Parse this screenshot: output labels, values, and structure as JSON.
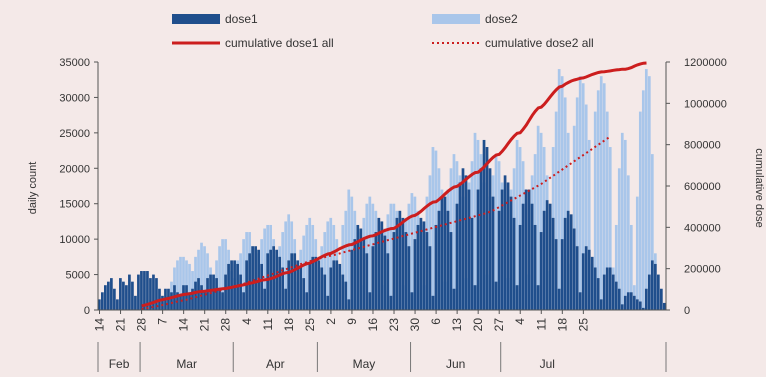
{
  "colors": {
    "background": "#f4e9e8",
    "dose1": "#1f4e8c",
    "dose2": "#a9c6ea",
    "cumulative_dose1": "#cc1e1e",
    "cumulative_dose2": "#cc1e1e",
    "axis_text": "#333333"
  },
  "chart_data": {
    "type": "bar",
    "title": "",
    "ylabel": "daily count",
    "y2label": "cumulative dose",
    "ylim": [
      0,
      35000
    ],
    "y2lim": [
      0,
      1200000
    ],
    "yticks": [
      "0",
      "5000",
      "10000",
      "15000",
      "20000",
      "25000",
      "30000",
      "35000"
    ],
    "y2ticks": [
      "0",
      "200000",
      "400000",
      "600000",
      "800000",
      "1000000",
      "1200000"
    ],
    "x_day_labels": [
      "14",
      "21",
      "28",
      "7",
      "14",
      "21",
      "28",
      "4",
      "11",
      "18",
      "25",
      "2",
      "9",
      "16",
      "23",
      "30",
      "6",
      "13",
      "20",
      "27",
      "4",
      "11",
      "18",
      "25"
    ],
    "months": [
      "Feb",
      "Mar",
      "Apr",
      "May",
      "Jun",
      "Jul"
    ],
    "legend": {
      "dose1": "dose1",
      "dose2": "dose2",
      "cum1": "cumulative dose1 all",
      "cum2": "cumulative dose2 all"
    },
    "legend_position": "top",
    "start_date": "2021-02-14",
    "series": [
      {
        "name": "dose1",
        "type": "bar",
        "values": [
          1500,
          2500,
          3500,
          4000,
          4500,
          3000,
          1500,
          4500,
          4000,
          3500,
          5000,
          4000,
          2000,
          5000,
          5500,
          5500,
          5500,
          4500,
          5000,
          4500,
          3000,
          2000,
          3000,
          3000,
          2500,
          3500,
          2500,
          2000,
          3500,
          3500,
          2500,
          3000,
          4000,
          4500,
          3500,
          2500,
          4500,
          5000,
          5000,
          4500,
          3000,
          2500,
          5000,
          6500,
          7000,
          7000,
          6500,
          5000,
          2500,
          7000,
          8000,
          9000,
          9000,
          8500,
          6500,
          3000,
          8000,
          8500,
          9000,
          8500,
          7500,
          6000,
          3000,
          7000,
          8000,
          8000,
          7000,
          6000,
          4500,
          2500,
          6500,
          7500,
          7500,
          7000,
          6000,
          5000,
          2000,
          6000,
          7000,
          7000,
          6500,
          5000,
          4000,
          1500,
          8500,
          10000,
          12000,
          11500,
          10000,
          8000,
          2500,
          9000,
          11000,
          13000,
          12500,
          10500,
          8000,
          2000,
          11000,
          13000,
          14000,
          13000,
          11000,
          9000,
          2500,
          10000,
          12000,
          13000,
          12500,
          11000,
          9000,
          2000,
          12000,
          14000,
          16000,
          16000,
          14000,
          11000,
          3000,
          15000,
          18000,
          20000,
          19000,
          17000,
          13000,
          3500,
          17000,
          20000,
          24000,
          23000,
          20000,
          16000,
          4000,
          14000,
          17000,
          19000,
          18000,
          16000,
          13000,
          3500,
          12000,
          15000,
          17000,
          17000,
          15000,
          12000,
          3500,
          11000,
          14000,
          15500,
          15000,
          13000,
          10000,
          3000,
          10000,
          13000,
          14000,
          13500,
          11500,
          9000,
          2500,
          8000,
          9000,
          8500,
          7500,
          6000,
          4500,
          1500,
          5000,
          6000,
          6000,
          5000,
          4000,
          3000,
          800,
          2000,
          2500,
          2500,
          2000,
          1500,
          1200,
          300,
          3000,
          5000,
          7000,
          6500,
          5000,
          3000,
          1000
        ]
      },
      {
        "name": "dose2",
        "type": "bar",
        "values": [
          0,
          0,
          0,
          0,
          0,
          0,
          0,
          0,
          0,
          0,
          0,
          0,
          0,
          0,
          0,
          0,
          0,
          0,
          0,
          0,
          0,
          0,
          0,
          2000,
          4000,
          6000,
          7000,
          7500,
          7500,
          7000,
          6500,
          5500,
          7500,
          8500,
          9500,
          9000,
          8000,
          6000,
          5000,
          7000,
          9000,
          10000,
          10000,
          8500,
          5500,
          4500,
          7000,
          8000,
          10000,
          11000,
          11000,
          9000,
          4000,
          8000,
          10000,
          11500,
          12000,
          12000,
          10000,
          4000,
          9000,
          11000,
          12500,
          13500,
          12500,
          10000,
          4000,
          8500,
          10500,
          12000,
          13000,
          12000,
          10000,
          4000,
          9000,
          11000,
          12500,
          13000,
          12000,
          10000,
          4000,
          12000,
          14000,
          17000,
          16000,
          14000,
          11000,
          3500,
          13000,
          15000,
          16000,
          15000,
          14000,
          12000,
          3500,
          11500,
          13500,
          15000,
          15000,
          14000,
          12000,
          3500,
          13000,
          15000,
          16500,
          16000,
          14000,
          12000,
          3500,
          16000,
          19000,
          23000,
          22500,
          20000,
          17000,
          4000,
          17000,
          20000,
          22000,
          21000,
          19000,
          16000,
          4500,
          18000,
          21000,
          25000,
          24000,
          22000,
          18000,
          5000,
          16000,
          19000,
          22000,
          21000,
          18000,
          15000,
          4500,
          17000,
          20000,
          24000,
          23000,
          21000,
          17000,
          5000,
          19000,
          22000,
          26000,
          25000,
          23000,
          19000,
          5500,
          23000,
          28000,
          34000,
          33000,
          30000,
          25000,
          6500,
          26000,
          30000,
          33000,
          32000,
          29000,
          24000,
          6500,
          28000,
          31000,
          33000,
          32000,
          28000,
          23000,
          6000,
          12000,
          20000,
          25000,
          24000,
          19000,
          12000,
          3500,
          16000,
          28000,
          31000,
          34000,
          33000,
          22000,
          8000
        ]
      },
      {
        "name": "cumulative dose1 all",
        "type": "line",
        "style": "solid",
        "x_start_index": 14,
        "values": [
          20000,
          23000,
          27000,
          32000,
          37000,
          42000,
          47000,
          50000,
          53000,
          56000,
          60000,
          64000,
          68000,
          72000,
          75000,
          77000,
          79000,
          82000,
          85000,
          88000,
          90000,
          91000,
          93000,
          95000,
          97000,
          99000,
          101000,
          103000,
          104000,
          107000,
          110000,
          113000,
          116000,
          119000,
          122000,
          126000,
          129000,
          132000,
          136000,
          140000,
          144000,
          146000,
          148000,
          152000,
          157000,
          163000,
          170000,
          176000,
          180000,
          182000,
          188000,
          195000,
          203000,
          211000,
          218000,
          224000,
          227000,
          234000,
          242000,
          250000,
          258000,
          265000,
          271000,
          274000,
          281000,
          289000,
          297000,
          304000,
          310000,
          315000,
          317000,
          324000,
          331000,
          339000,
          346000,
          352000,
          357000,
          359000,
          365000,
          372000,
          379000,
          385000,
          390000,
          394000,
          395000,
          404000,
          414000,
          426000,
          437000,
          447000,
          455000,
          458000,
          467000,
          478000,
          491000,
          503000,
          514000,
          522000,
          524000,
          535000,
          548000,
          562000,
          575000,
          586000,
          595000,
          598000,
          608000,
          620000,
          633000,
          645000,
          656000,
          665000,
          667000,
          679000,
          693000,
          709000,
          725000,
          739000,
          750000,
          753000,
          768000,
          786000,
          806000,
          825000,
          842000,
          855000,
          858000,
          875000,
          895000,
          919000,
          942000,
          962000,
          978000,
          982000,
          996000,
          1013000,
          1032000,
          1050000,
          1066000,
          1079000,
          1083000,
          1093000,
          1101000,
          1108000,
          1113000,
          1117000,
          1121000,
          1123000,
          1128000,
          1134000,
          1140000,
          1145000,
          1149000,
          1152000,
          1153000,
          1155000,
          1157000,
          1160000,
          1162000,
          1163000,
          1165000,
          1165000,
          1168000,
          1173000,
          1180000,
          1186000,
          1191000,
          1194000,
          1195000
        ]
      },
      {
        "name": "cumulative dose2 all",
        "type": "line",
        "style": "dotted",
        "x_start_index": 14,
        "values": [
          5000,
          7000,
          9000,
          12000,
          15000,
          18000,
          21000,
          24000,
          27000,
          30000,
          34000,
          38000,
          41000,
          44000,
          47000,
          50000,
          54000,
          58000,
          62000,
          66000,
          70000,
          74000,
          78000,
          82000,
          86000,
          90000,
          94000,
          98000,
          102000,
          106000,
          110000,
          114000,
          118000,
          122000,
          127000,
          132000,
          137000,
          142000,
          147000,
          152000,
          157000,
          162000,
          167000,
          172000,
          177000,
          182000,
          187000,
          192000,
          197000,
          202000,
          207000,
          212000,
          217000,
          222000,
          227000,
          232000,
          236000,
          240000,
          244000,
          248000,
          252000,
          256000,
          260000,
          263000,
          266000,
          270000,
          274000,
          278000,
          282000,
          286000,
          290000,
          294000,
          298000,
          302000,
          306000,
          310000,
          314000,
          318000,
          322000,
          326000,
          330000,
          334000,
          338000,
          342000,
          346000,
          350000,
          354000,
          358000,
          362000,
          366000,
          370000,
          374000,
          378000,
          382000,
          386000,
          390000,
          394000,
          398000,
          402000,
          406000,
          410000,
          414000,
          418000,
          422000,
          426000,
          430000,
          434000,
          438000,
          442000,
          446000,
          450000,
          454000,
          458000,
          462000,
          466000,
          470000,
          476000,
          482000,
          490000,
          498000,
          506000,
          514000,
          522000,
          530000,
          538000,
          546000,
          554000,
          562000,
          570000,
          578000,
          586000,
          594000,
          602000,
          610000,
          620000,
          630000,
          640000,
          650000,
          660000,
          670000,
          680000,
          690000,
          700000,
          710000,
          720000,
          730000,
          740000,
          750000,
          760000,
          770000,
          780000,
          790000,
          800000,
          810000,
          820000,
          830000,
          840000
        ]
      }
    ]
  }
}
